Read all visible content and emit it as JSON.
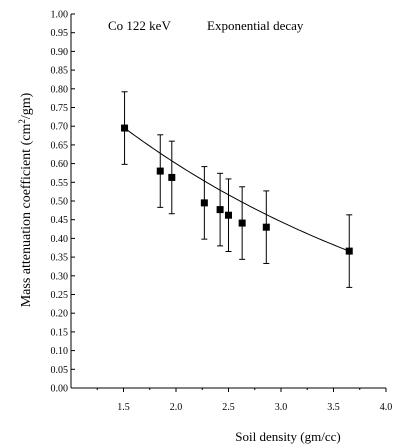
{
  "chart_data": {
    "type": "scatter",
    "title": "Co 122 keV",
    "subtitle": "Exponential decay",
    "xlabel": "Soil density (gm/cc)",
    "ylabel_main": "Mass attenuation coefficient (cm",
    "ylabel_sup": "2",
    "ylabel_end": "/gm)",
    "xlim": [
      10,
      40
    ],
    "ylim": [
      0,
      1
    ],
    "x_ticks": [
      "1.5",
      "2.0",
      "2.5",
      "3.0",
      "3.5",
      "4.0"
    ],
    "y_ticks": [
      "0.00",
      "0.05",
      "0.10",
      "0.15",
      "0.20",
      "0.25",
      "0.30",
      "0.35",
      "0.40",
      "0.45",
      "0.50",
      "0.55",
      "0.60",
      "0.65",
      "0.70",
      "0.75",
      "0.80",
      "0.85",
      "0.90",
      "0.95",
      "1.00"
    ],
    "grid": false,
    "series": [
      {
        "x": [
          15.1,
          18.5,
          19.6,
          22.7,
          24.2,
          25.0,
          26.3,
          28.6,
          36.5
        ],
        "y": [
          0.695,
          0.58,
          0.563,
          0.495,
          0.477,
          0.462,
          0.441,
          0.43,
          0.366
        ],
        "err": [
          0.097,
          0.097,
          0.097,
          0.097,
          0.097,
          0.097,
          0.097,
          0.097,
          0.097
        ]
      }
    ],
    "fit": {
      "kind": "exponential"
    }
  }
}
